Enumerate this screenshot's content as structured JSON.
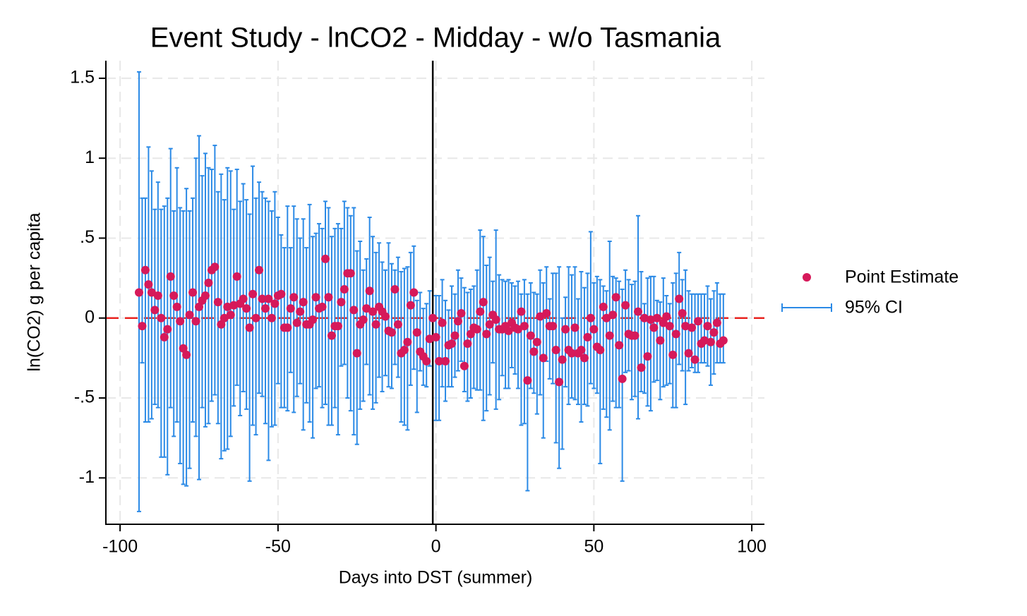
{
  "chart_data": {
    "type": "errorbar-scatter",
    "title": "Event Study - lnCO2 - Midday - w/o Tasmania",
    "x_label": "Days into DST (summer)",
    "y_label": "ln(CO2) g per capita",
    "xlim": [
      -104.5,
      104
    ],
    "ylim": [
      -1.29,
      1.61
    ],
    "xticks": [
      -100,
      -50,
      0,
      50,
      100
    ],
    "yticks": [
      -1,
      {
        "value": -0.5,
        "label": "-.5"
      },
      0,
      {
        "value": 0.5,
        "label": ".5"
      },
      1,
      1.5
    ],
    "grid": true,
    "reference_line_y": 0,
    "reference_line_y_color": "#e8231f",
    "reference_line_x": -1,
    "reference_line_x_color": "#000000",
    "legend": "right",
    "x": [
      -94,
      -93,
      -92,
      -91,
      -90,
      -89,
      -88,
      -87,
      -86,
      -85,
      -84,
      -83,
      -82,
      -81,
      -80,
      -79,
      -78,
      -77,
      -76,
      -75,
      -74,
      -73,
      -72,
      -71,
      -70,
      -69,
      -68,
      -67,
      -66,
      -65,
      -64,
      -63,
      -62,
      -61,
      -60,
      -59,
      -58,
      -57,
      -56,
      -55,
      -54,
      -53,
      -52,
      -51,
      -50,
      -49,
      -48,
      -47,
      -46,
      -45,
      -44,
      -43,
      -42,
      -41,
      -40,
      -39,
      -38,
      -37,
      -36,
      -35,
      -34,
      -33,
      -32,
      -31,
      -30,
      -29,
      -28,
      -27,
      -26,
      -25,
      -24,
      -23,
      -22,
      -21,
      -20,
      -19,
      -18,
      -17,
      -16,
      -15,
      -14,
      -13,
      -12,
      -11,
      -10,
      -9,
      -8,
      -7,
      -6,
      -5,
      -4,
      -3,
      -2,
      -1,
      0,
      1,
      2,
      3,
      4,
      5,
      6,
      7,
      8,
      9,
      10,
      11,
      12,
      13,
      14,
      15,
      16,
      17,
      18,
      19,
      20,
      21,
      22,
      23,
      24,
      25,
      26,
      27,
      28,
      29,
      30,
      31,
      32,
      33,
      34,
      35,
      36,
      37,
      38,
      39,
      40,
      41,
      42,
      43,
      44,
      45,
      46,
      47,
      48,
      49,
      50,
      51,
      52,
      53,
      54,
      55,
      56,
      57,
      58,
      59,
      60,
      61,
      62,
      63,
      64,
      65,
      66,
      67,
      68,
      69,
      70,
      71,
      72,
      73,
      74,
      75,
      76,
      77,
      78,
      79,
      80,
      81,
      82,
      83,
      84,
      85,
      86,
      87,
      88,
      89,
      90,
      91
    ],
    "series": [
      {
        "name": "Point Estimate",
        "color": "#d6195a",
        "values": [
          0.16,
          -0.05,
          0.3,
          0.21,
          0.16,
          0.05,
          0.14,
          0.0,
          -0.12,
          -0.07,
          0.26,
          0.14,
          0.07,
          -0.02,
          -0.19,
          -0.23,
          0.02,
          0.16,
          -0.02,
          0.07,
          0.11,
          0.14,
          0.22,
          0.3,
          0.32,
          0.1,
          -0.04,
          0.0,
          0.07,
          0.02,
          0.08,
          0.26,
          0.09,
          0.12,
          0.06,
          -0.06,
          0.15,
          0.0,
          0.3,
          0.12,
          0.06,
          0.12,
          0.0,
          0.09,
          0.14,
          0.15,
          -0.06,
          -0.06,
          0.06,
          0.13,
          -0.03,
          0.04,
          0.1,
          -0.04,
          -0.04,
          -0.01,
          0.13,
          0.06,
          0.07,
          0.37,
          0.13,
          -0.11,
          -0.05,
          -0.05,
          0.1,
          0.18,
          0.28,
          0.28,
          0.05,
          -0.22,
          -0.04,
          -0.01,
          0.06,
          0.17,
          0.04,
          -0.04,
          0.07,
          0.04,
          0.01,
          -0.08,
          -0.09,
          0.18,
          -0.04,
          -0.22,
          -0.2,
          -0.15,
          0.08,
          0.16,
          -0.09,
          -0.21,
          -0.24,
          -0.27,
          -0.13,
          0,
          -0.12,
          -0.27,
          -0.03,
          -0.27,
          -0.17,
          -0.16,
          -0.11,
          -0.02,
          0.03,
          -0.3,
          -0.16,
          -0.1,
          -0.06,
          -0.07,
          0.04,
          0.1,
          -0.1,
          -0.04,
          0.02,
          -0.01,
          -0.07,
          -0.07,
          -0.05,
          -0.08,
          -0.03,
          -0.06,
          -0.07,
          0.04,
          -0.05,
          -0.39,
          -0.11,
          -0.21,
          -0.15,
          0.01,
          -0.25,
          0.03,
          -0.05,
          -0.05,
          -0.2,
          -0.4,
          -0.26,
          -0.07,
          -0.2,
          -0.22,
          -0.06,
          -0.22,
          -0.2,
          -0.25,
          -0.12,
          0.0,
          -0.07,
          -0.18,
          -0.2,
          0.07,
          0.0,
          -0.11,
          0.02,
          0.13,
          -0.17,
          -0.38,
          0.08,
          -0.1,
          -0.11,
          -0.11,
          0.04,
          -0.31,
          0.0,
          -0.24,
          -0.01,
          -0.06,
          0.0,
          -0.14,
          -0.03,
          0.01,
          -0.05,
          -0.23,
          -0.1,
          0.12,
          0.03,
          -0.05,
          -0.22,
          -0.06,
          -0.26,
          -0.02,
          -0.16,
          -0.14,
          -0.05,
          -0.15,
          -0.09,
          -0.03,
          -0.16,
          -0.14
        ]
      },
      {
        "name": "95% CI",
        "color": "#2b8ae6",
        "low": [
          -1.21,
          -0.28,
          -0.65,
          -0.65,
          -0.63,
          -0.54,
          -0.56,
          -0.87,
          -0.87,
          -0.98,
          -0.56,
          -0.74,
          -0.65,
          -0.91,
          -1.04,
          -1.05,
          -0.94,
          -0.65,
          -0.74,
          -1.01,
          -0.56,
          -0.68,
          -0.66,
          -0.52,
          -0.48,
          -0.66,
          -0.88,
          -0.83,
          -0.82,
          -0.74,
          -0.55,
          -0.42,
          -0.61,
          -0.46,
          -0.57,
          -1.02,
          -0.67,
          -0.73,
          -0.47,
          -0.49,
          -0.66,
          -0.89,
          -0.68,
          -0.67,
          -0.41,
          -0.56,
          -0.56,
          -0.58,
          -0.34,
          -0.59,
          -0.49,
          -0.41,
          -0.7,
          -0.53,
          -0.65,
          -0.75,
          -0.44,
          -0.43,
          -0.56,
          -0.54,
          -0.67,
          -0.67,
          -0.56,
          -0.73,
          -0.3,
          -0.29,
          -0.5,
          -0.58,
          -0.73,
          -0.79,
          -0.57,
          -0.52,
          -0.29,
          -0.48,
          -0.57,
          -0.53,
          -0.37,
          -0.46,
          -0.36,
          -0.43,
          -0.44,
          -0.29,
          -0.37,
          -0.65,
          -0.67,
          -0.7,
          -0.42,
          -0.32,
          -0.59,
          -0.33,
          -0.42,
          -0.43,
          -0.3,
          0,
          -0.64,
          -0.64,
          -0.43,
          -0.52,
          -0.43,
          -0.43,
          -0.37,
          -0.33,
          -0.27,
          -0.46,
          -0.52,
          -0.5,
          -0.44,
          -0.45,
          -0.45,
          -0.64,
          -0.58,
          -0.48,
          -0.28,
          -0.57,
          -0.51,
          -0.36,
          -0.44,
          -0.44,
          -0.31,
          -0.35,
          -0.44,
          -0.67,
          -0.66,
          -1.08,
          -0.44,
          -0.47,
          -0.6,
          -0.48,
          -0.75,
          -0.27,
          -0.38,
          -0.41,
          -0.78,
          -0.94,
          -0.82,
          -0.43,
          -0.54,
          -0.5,
          -0.51,
          -0.54,
          -0.65,
          -0.54,
          -0.55,
          -0.41,
          -0.44,
          -0.47,
          -0.91,
          -0.57,
          -0.62,
          -0.7,
          -0.52,
          -0.56,
          -0.56,
          -1.02,
          -0.34,
          -0.33,
          -0.51,
          -0.49,
          -0.63,
          -0.46,
          -0.47,
          -0.55,
          -0.58,
          -0.4,
          -0.39,
          -0.51,
          -0.43,
          -0.42,
          -0.41,
          -0.56,
          -0.56,
          -0.29,
          -0.33,
          -0.54,
          -0.33,
          -0.31,
          -0.34,
          -0.34,
          -0.28,
          -0.28,
          -0.3,
          -0.42,
          -0.35,
          -0.28,
          -0.28,
          -0.28
        ],
        "high": [
          1.54,
          0.75,
          0.75,
          1.07,
          0.92,
          0.68,
          0.85,
          0.68,
          0.7,
          0.75,
          1.06,
          0.67,
          0.94,
          0.69,
          0.67,
          0.81,
          0.67,
          0.75,
          1.0,
          1.14,
          0.89,
          1.03,
          0.94,
          0.93,
          1.08,
          0.79,
          0.9,
          0.74,
          0.94,
          0.92,
          0.68,
          0.93,
          0.73,
          0.84,
          0.74,
          0.65,
          0.95,
          0.75,
          0.85,
          0.79,
          0.75,
          0.73,
          0.67,
          0.79,
          0.63,
          0.52,
          0.44,
          0.7,
          0.44,
          0.7,
          0.62,
          0.5,
          0.62,
          0.44,
          0.71,
          0.51,
          0.53,
          0.59,
          0.56,
          0.73,
          0.69,
          0.51,
          0.56,
          0.59,
          0.56,
          0.73,
          0.69,
          0.64,
          0.69,
          0.42,
          0.48,
          0.3,
          0.37,
          0.63,
          0.51,
          0.41,
          0.47,
          0.35,
          0.3,
          0.47,
          0.34,
          0.3,
          0.38,
          0.29,
          0.31,
          0.32,
          0.41,
          0.45,
          0.11,
          0.16,
          0.06,
          0.09,
          0.17,
          0,
          0.14,
          0.14,
          0.24,
          0.11,
          0.05,
          0.2,
          0.15,
          0.3,
          0.25,
          0.19,
          0.16,
          0.18,
          0.2,
          0.3,
          0.55,
          0.51,
          0.33,
          0.38,
          0.23,
          0.55,
          0.27,
          0.24,
          0.23,
          0.24,
          0.22,
          0.2,
          0.23,
          0.15,
          0.24,
          0.15,
          0.22,
          0.16,
          0.15,
          0.3,
          0.22,
          0.32,
          0.12,
          0.28,
          0.28,
          0.32,
          0.0,
          0.13,
          0.32,
          0.27,
          0.32,
          0.12,
          0.29,
          0.19,
          0.28,
          0.54,
          0.22,
          0.26,
          0.24,
          0.2,
          0.17,
          0.48,
          0.26,
          0.25,
          0.23,
          0.18,
          0.3,
          0.24,
          0.21,
          0.23,
          0.64,
          0.29,
          0.09,
          0.25,
          0.26,
          0.26,
          0.11,
          0.1,
          0.25,
          0.14,
          0.09,
          0.22,
          0.28,
          0.41,
          0.24,
          0.3,
          0.17,
          0.15,
          0.15,
          0.15,
          0.15,
          0.15,
          0.2,
          0.12,
          0.17,
          0.22,
          0.15,
          0.15
        ]
      }
    ]
  }
}
